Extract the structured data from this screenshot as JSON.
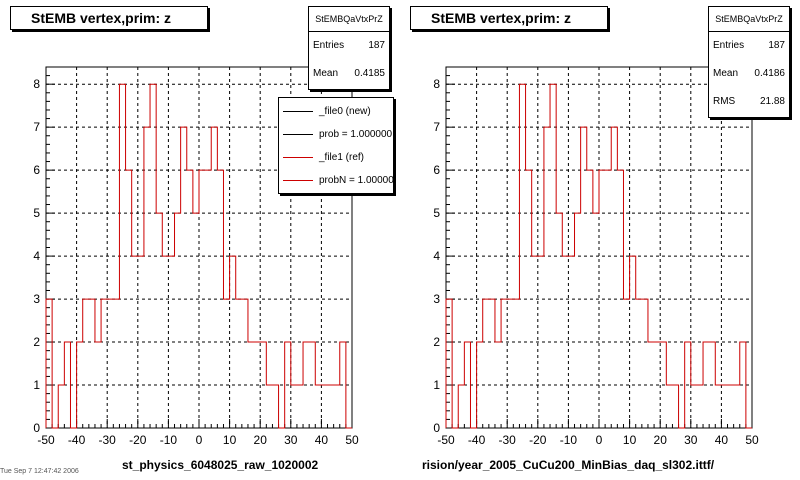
{
  "chart_data": [
    {
      "type": "histogram",
      "title": "StEMB  vertex,prim: z",
      "xlabel": "st_physics_6048025_raw_1020002",
      "ylabel": "",
      "xlim": [
        -50,
        50
      ],
      "ylim": [
        0,
        8.4
      ],
      "x_ticks": [
        "-50",
        "-40",
        "-30",
        "-20",
        "-10",
        "0",
        "10",
        "20",
        "30",
        "40",
        "50"
      ],
      "y_ticks": [
        "0",
        "1",
        "2",
        "3",
        "4",
        "5",
        "6",
        "7",
        "8"
      ],
      "grid": true,
      "bin_edges_start": -50,
      "bin_width": 2,
      "series": [
        {
          "name": "_file1 (ref)",
          "color": "#cc0000",
          "values": [
            3,
            0,
            1,
            2,
            0,
            2,
            3,
            3,
            2,
            3,
            3,
            3,
            8,
            6,
            4,
            4,
            7,
            8,
            5,
            4,
            4,
            5,
            7,
            6,
            5,
            6,
            6,
            7,
            6,
            3,
            4,
            3,
            3,
            2,
            2,
            2,
            1,
            1,
            0,
            2,
            1,
            1,
            2,
            2,
            1,
            1,
            1,
            1,
            2,
            0
          ]
        }
      ],
      "stats": {
        "name": "StEMBQaVtxPrZ",
        "entries_label": "Entries",
        "entries": "187",
        "mean_label": "Mean",
        "mean": "0.4185"
      },
      "legend": [
        {
          "label": "_file0 (new)",
          "color": "#000000"
        },
        {
          "label": "prob = 1.000000",
          "color": "#000000"
        },
        {
          "label": "_file1 (ref)",
          "color": "#cc0000"
        },
        {
          "label": "probN = 1.000000",
          "color": "#cc0000"
        }
      ]
    },
    {
      "type": "histogram",
      "title": "StEMB  vertex,prim: z",
      "xlabel": "rision/year_2005_CuCu200_MinBias_daq_sl302.ittf/",
      "ylabel": "",
      "xlim": [
        -50,
        50
      ],
      "ylim": [
        0,
        8.4
      ],
      "x_ticks": [
        "-50",
        "-40",
        "-30",
        "-20",
        "-10",
        "0",
        "10",
        "20",
        "30",
        "40",
        "50"
      ],
      "y_ticks": [
        "0",
        "1",
        "2",
        "3",
        "4",
        "5",
        "6",
        "7",
        "8"
      ],
      "grid": true,
      "bin_edges_start": -50,
      "bin_width": 2,
      "series": [
        {
          "name": "",
          "color": "#cc0000",
          "values": [
            3,
            0,
            1,
            2,
            0,
            2,
            3,
            3,
            2,
            3,
            3,
            3,
            8,
            6,
            4,
            4,
            7,
            8,
            5,
            4,
            4,
            5,
            7,
            6,
            5,
            6,
            6,
            7,
            6,
            3,
            4,
            3,
            3,
            2,
            2,
            2,
            1,
            1,
            0,
            2,
            1,
            1,
            2,
            2,
            1,
            1,
            1,
            1,
            2,
            0
          ]
        }
      ],
      "stats": {
        "name": "StEMBQaVtxPrZ",
        "entries_label": "Entries",
        "entries": "187",
        "mean_label": "Mean",
        "mean": "0.4186",
        "rms_label": "RMS",
        "rms": "21.88"
      }
    }
  ],
  "footer_note": "Tue Sep  7 12:47:42 2006"
}
